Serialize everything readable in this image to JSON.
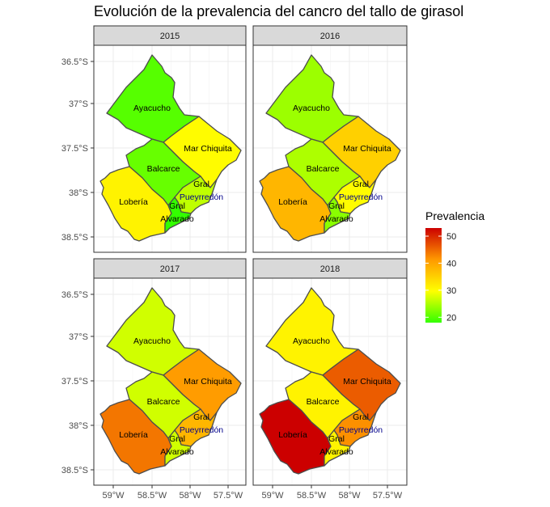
{
  "chart_data": {
    "type": "choropleth",
    "title": "Evolución de la prevalencia del cancro del tallo de girasol",
    "facets": [
      "2015",
      "2016",
      "2017",
      "2018"
    ],
    "regions": [
      {
        "name": "Ayacucho",
        "label_lines": [
          "Ayacucho"
        ]
      },
      {
        "name": "Mar Chiquita",
        "label_lines": [
          "Mar Chiquita"
        ]
      },
      {
        "name": "Balcarce",
        "label_lines": [
          "Balcarce"
        ]
      },
      {
        "name": "Lobería",
        "label_lines": [
          "Lobería"
        ]
      },
      {
        "name": "Gral Pueyrredón",
        "label_lines": [
          "Gral",
          "Pueyrredón"
        ]
      },
      {
        "name": "Gral Alvarado",
        "label_lines": [
          "Gral",
          "Alvarado"
        ]
      }
    ],
    "values": {
      "2015": {
        "Ayacucho": 20,
        "Mar Chiquita": 30,
        "Balcarce": 21,
        "Lobería": 31,
        "Gral Pueyrredón": 26,
        "Gral Alvarado": 18
      },
      "2016": {
        "Ayacucho": 24,
        "Mar Chiquita": 35,
        "Balcarce": 25,
        "Lobería": 38,
        "Gral Pueyrredón": 30,
        "Gral Alvarado": 23
      },
      "2017": {
        "Ayacucho": 27,
        "Mar Chiquita": 41,
        "Balcarce": 27,
        "Lobería": 44,
        "Gral Pueyrredón": 38,
        "Gral Alvarado": 27
      },
      "2018": {
        "Ayacucho": 31,
        "Mar Chiquita": 46,
        "Balcarce": 31,
        "Lobería": 53,
        "Gral Pueyrredón": 42,
        "Gral Alvarado": 31
      }
    },
    "x_ticks": [
      "59°W",
      "58.5°W",
      "58°W",
      "57.5°W"
    ],
    "y_ticks": [
      "36.5°S",
      "37°S",
      "37.5°S",
      "38°S",
      "38.5°S"
    ],
    "legend": {
      "title": "Prevalencia",
      "placement": "right",
      "breaks": [
        20,
        30,
        40,
        50
      ],
      "range": [
        18,
        53
      ],
      "colors": [
        "#33ff00",
        "#ffff00",
        "#ff9900",
        "#cc0000"
      ]
    }
  }
}
